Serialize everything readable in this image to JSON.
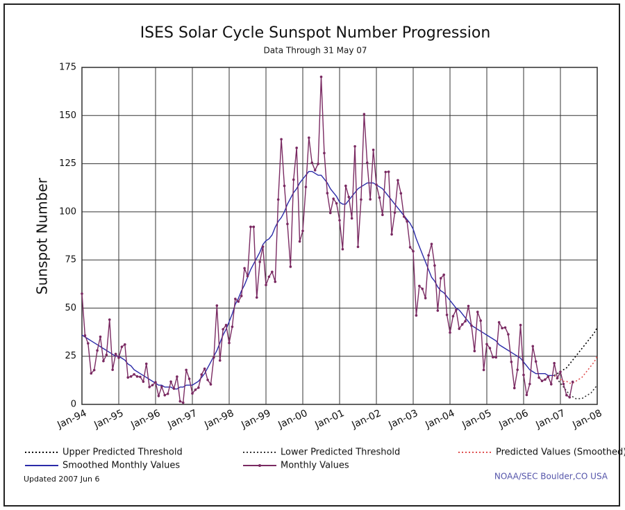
{
  "chart_data": {
    "type": "line",
    "title": "ISES Solar Cycle Sunspot Number Progression",
    "subtitle": "Data Through 31 May 07",
    "y_label": "Sunspot Number",
    "note_left": "Updated 2007 Jun  6",
    "note_right": "NOAA/SEC Boulder,CO USA",
    "ylim": [
      0,
      175
    ],
    "yticks": [
      0,
      25,
      50,
      75,
      100,
      125,
      150,
      175
    ],
    "grid": true,
    "categories": [
      "Jan-94",
      null,
      null,
      null,
      null,
      null,
      null,
      null,
      null,
      null,
      null,
      null,
      "Jan-95",
      null,
      null,
      null,
      null,
      null,
      null,
      null,
      null,
      null,
      null,
      null,
      "Jan-96",
      null,
      null,
      null,
      null,
      null,
      null,
      null,
      null,
      null,
      null,
      null,
      "Jan-97",
      null,
      null,
      null,
      null,
      null,
      null,
      null,
      null,
      null,
      null,
      null,
      "Jan-98",
      null,
      null,
      null,
      null,
      null,
      null,
      null,
      null,
      null,
      null,
      null,
      "Jan-99",
      null,
      null,
      null,
      null,
      null,
      null,
      null,
      null,
      null,
      null,
      null,
      "Jan-00",
      null,
      null,
      null,
      null,
      null,
      null,
      null,
      null,
      null,
      null,
      null,
      "Jan-01",
      null,
      null,
      null,
      null,
      null,
      null,
      null,
      null,
      null,
      null,
      null,
      "Jan-02",
      null,
      null,
      null,
      null,
      null,
      null,
      null,
      null,
      null,
      null,
      null,
      "Jan-03",
      null,
      null,
      null,
      null,
      null,
      null,
      null,
      null,
      null,
      null,
      null,
      "Jan-04",
      null,
      null,
      null,
      null,
      null,
      null,
      null,
      null,
      null,
      null,
      null,
      "Jan-05",
      null,
      null,
      null,
      null,
      null,
      null,
      null,
      null,
      null,
      null,
      null,
      "Jan-06",
      null,
      null,
      null,
      null,
      null,
      null,
      null,
      null,
      null,
      null,
      null,
      "Jan-07",
      null,
      null,
      null,
      null,
      null,
      null,
      null,
      null,
      null,
      null,
      null,
      "Jan-08"
    ],
    "series": [
      {
        "name": "Upper Predicted Threshold",
        "color": "#000000",
        "style": "dotted",
        "values": [
          null,
          null,
          null,
          null,
          null,
          null,
          null,
          null,
          null,
          null,
          null,
          null,
          null,
          null,
          null,
          null,
          null,
          null,
          null,
          null,
          null,
          null,
          null,
          null,
          null,
          null,
          null,
          null,
          null,
          null,
          null,
          null,
          null,
          null,
          null,
          null,
          null,
          null,
          null,
          null,
          null,
          null,
          null,
          null,
          null,
          null,
          null,
          null,
          null,
          null,
          null,
          null,
          null,
          null,
          null,
          null,
          null,
          null,
          null,
          null,
          null,
          null,
          null,
          null,
          null,
          null,
          null,
          null,
          null,
          null,
          null,
          null,
          null,
          null,
          null,
          null,
          null,
          null,
          null,
          null,
          null,
          null,
          null,
          null,
          null,
          null,
          null,
          null,
          null,
          null,
          null,
          null,
          null,
          null,
          null,
          null,
          null,
          null,
          null,
          null,
          null,
          null,
          null,
          null,
          null,
          null,
          null,
          null,
          null,
          null,
          null,
          null,
          null,
          null,
          null,
          null,
          null,
          null,
          null,
          null,
          null,
          null,
          null,
          null,
          null,
          null,
          null,
          null,
          null,
          null,
          null,
          null,
          null,
          null,
          null,
          null,
          null,
          null,
          null,
          null,
          null,
          null,
          null,
          null,
          null,
          null,
          null,
          null,
          null,
          null,
          null,
          null,
          null,
          null,
          15,
          16,
          17,
          18,
          19,
          21,
          23,
          25,
          27,
          29,
          31,
          33,
          35,
          37,
          40
        ]
      },
      {
        "name": "Lower Predicted Threshold",
        "color": "#333333",
        "style": "dotted",
        "values": [
          null,
          null,
          null,
          null,
          null,
          null,
          null,
          null,
          null,
          null,
          null,
          null,
          null,
          null,
          null,
          null,
          null,
          null,
          null,
          null,
          null,
          null,
          null,
          null,
          null,
          null,
          null,
          null,
          null,
          null,
          null,
          null,
          null,
          null,
          null,
          null,
          null,
          null,
          null,
          null,
          null,
          null,
          null,
          null,
          null,
          null,
          null,
          null,
          null,
          null,
          null,
          null,
          null,
          null,
          null,
          null,
          null,
          null,
          null,
          null,
          null,
          null,
          null,
          null,
          null,
          null,
          null,
          null,
          null,
          null,
          null,
          null,
          null,
          null,
          null,
          null,
          null,
          null,
          null,
          null,
          null,
          null,
          null,
          null,
          null,
          null,
          null,
          null,
          null,
          null,
          null,
          null,
          null,
          null,
          null,
          null,
          null,
          null,
          null,
          null,
          null,
          null,
          null,
          null,
          null,
          null,
          null,
          null,
          null,
          null,
          null,
          null,
          null,
          null,
          null,
          null,
          null,
          null,
          null,
          null,
          null,
          null,
          null,
          null,
          null,
          null,
          null,
          null,
          null,
          null,
          null,
          null,
          null,
          null,
          null,
          null,
          null,
          null,
          null,
          null,
          null,
          null,
          null,
          null,
          null,
          null,
          null,
          null,
          null,
          null,
          null,
          null,
          null,
          null,
          15,
          13,
          11,
          9,
          7,
          5,
          4,
          3,
          3,
          3,
          4,
          5,
          6,
          8,
          10
        ]
      },
      {
        "name": "Predicted Values (Smoothed)",
        "color": "#e05050",
        "style": "dotted",
        "values": [
          null,
          null,
          null,
          null,
          null,
          null,
          null,
          null,
          null,
          null,
          null,
          null,
          null,
          null,
          null,
          null,
          null,
          null,
          null,
          null,
          null,
          null,
          null,
          null,
          null,
          null,
          null,
          null,
          null,
          null,
          null,
          null,
          null,
          null,
          null,
          null,
          null,
          null,
          null,
          null,
          null,
          null,
          null,
          null,
          null,
          null,
          null,
          null,
          null,
          null,
          null,
          null,
          null,
          null,
          null,
          null,
          null,
          null,
          null,
          null,
          null,
          null,
          null,
          null,
          null,
          null,
          null,
          null,
          null,
          null,
          null,
          null,
          null,
          null,
          null,
          null,
          null,
          null,
          null,
          null,
          null,
          null,
          null,
          null,
          null,
          null,
          null,
          null,
          null,
          null,
          null,
          null,
          null,
          null,
          null,
          null,
          null,
          null,
          null,
          null,
          null,
          null,
          null,
          null,
          null,
          null,
          null,
          null,
          null,
          null,
          null,
          null,
          null,
          null,
          null,
          null,
          null,
          null,
          null,
          null,
          null,
          null,
          null,
          null,
          null,
          null,
          null,
          null,
          null,
          null,
          null,
          null,
          null,
          null,
          null,
          null,
          null,
          null,
          null,
          null,
          null,
          null,
          null,
          null,
          null,
          null,
          null,
          null,
          null,
          null,
          null,
          null,
          null,
          null,
          15,
          14,
          13,
          12,
          12,
          11,
          11,
          12,
          13,
          14,
          16,
          18,
          20,
          22,
          25
        ]
      },
      {
        "name": "Smoothed Monthly Values",
        "color": "#2a2aa8",
        "style": "solid",
        "values": [
          36,
          35,
          34,
          33,
          32,
          31,
          30,
          29,
          28,
          27,
          26,
          25,
          25,
          24,
          23,
          21,
          20,
          18,
          17,
          16,
          15,
          14,
          13,
          12,
          11,
          10,
          10,
          9,
          9,
          9,
          8,
          8,
          9,
          9,
          10,
          10,
          10,
          11,
          12,
          14,
          16,
          19,
          22,
          25,
          28,
          32,
          36,
          39,
          43,
          47,
          52,
          55,
          59,
          62,
          66,
          70,
          73,
          76,
          79,
          83,
          85,
          86,
          88,
          92,
          95,
          97,
          100,
          104,
          107,
          110,
          112,
          115,
          117,
          119,
          121,
          121,
          120,
          119,
          119,
          117,
          115,
          112,
          110,
          108,
          105,
          104,
          104,
          106,
          108,
          110,
          112,
          113,
          114,
          115,
          115,
          115,
          114,
          113,
          112,
          110,
          108,
          106,
          104,
          102,
          100,
          98,
          96,
          94,
          91,
          86,
          82,
          78,
          74,
          70,
          66,
          64,
          61,
          59,
          58,
          56,
          54,
          52,
          50,
          49,
          47,
          45,
          43,
          41,
          40,
          39,
          38,
          37,
          36,
          35,
          34,
          33,
          31,
          30,
          29,
          28,
          27,
          26,
          25,
          24,
          22,
          20,
          18,
          17,
          16,
          16,
          16,
          16,
          15,
          15,
          15,
          null,
          null,
          null,
          null,
          null,
          null,
          null,
          null,
          null,
          null,
          null,
          null,
          null,
          null
        ]
      },
      {
        "name": "Monthly Values",
        "color": "#7a2a62",
        "style": "solid",
        "markers": true,
        "values": [
          57.5,
          35.8,
          31.7,
          16.1,
          17.8,
          28.0,
          35.1,
          22.5,
          25.7,
          44.0,
          18.0,
          26.2,
          24.2,
          29.9,
          31.1,
          14.0,
          14.5,
          15.6,
          14.5,
          14.3,
          11.8,
          21.1,
          9.0,
          10.0,
          11.5,
          4.4,
          9.2,
          4.8,
          5.5,
          11.8,
          8.2,
          14.4,
          1.6,
          0.9,
          17.9,
          13.3,
          5.7,
          7.6,
          8.7,
          15.5,
          18.5,
          12.7,
          10.4,
          24.4,
          51.3,
          22.8,
          39.0,
          41.2,
          31.9,
          40.3,
          54.8,
          53.4,
          56.3,
          70.7,
          66.6,
          92.2,
          92.2,
          55.5,
          74.0,
          81.9,
          62.0,
          66.3,
          68.8,
          63.7,
          106.4,
          137.7,
          113.5,
          93.7,
          71.5,
          116.7,
          133.2,
          84.6,
          90.1,
          112.9,
          138.5,
          125.5,
          121.6,
          124.9,
          170.1,
          130.5,
          109.7,
          99.4,
          106.8,
          104.4,
          95.6,
          80.6,
          113.5,
          107.7,
          96.6,
          134.0,
          81.8,
          106.4,
          150.7,
          125.5,
          106.5,
          132.2,
          114.1,
          107.4,
          98.4,
          120.7,
          120.8,
          88.3,
          99.6,
          116.4,
          109.6,
          97.5,
          95.0,
          81.6,
          79.5,
          46.2,
          61.5,
          60.0,
          55.2,
          77.4,
          83.3,
          72.1,
          48.7,
          65.5,
          67.3,
          46.5,
          37.3,
          45.8,
          49.1,
          39.3,
          41.5,
          43.2,
          51.1,
          40.9,
          27.7,
          48.0,
          43.5,
          17.9,
          31.3,
          29.2,
          24.5,
          24.4,
          42.6,
          39.6,
          39.9,
          36.4,
          22.1,
          8.5,
          18.0,
          41.2,
          15.3,
          4.9,
          10.6,
          30.2,
          22.3,
          13.9,
          12.2,
          12.9,
          14.4,
          10.5,
          21.4,
          13.6,
          16.9,
          10.6,
          4.8,
          3.7,
          11.7,
          null,
          null,
          null,
          null,
          null,
          null,
          null,
          null
        ]
      }
    ]
  }
}
